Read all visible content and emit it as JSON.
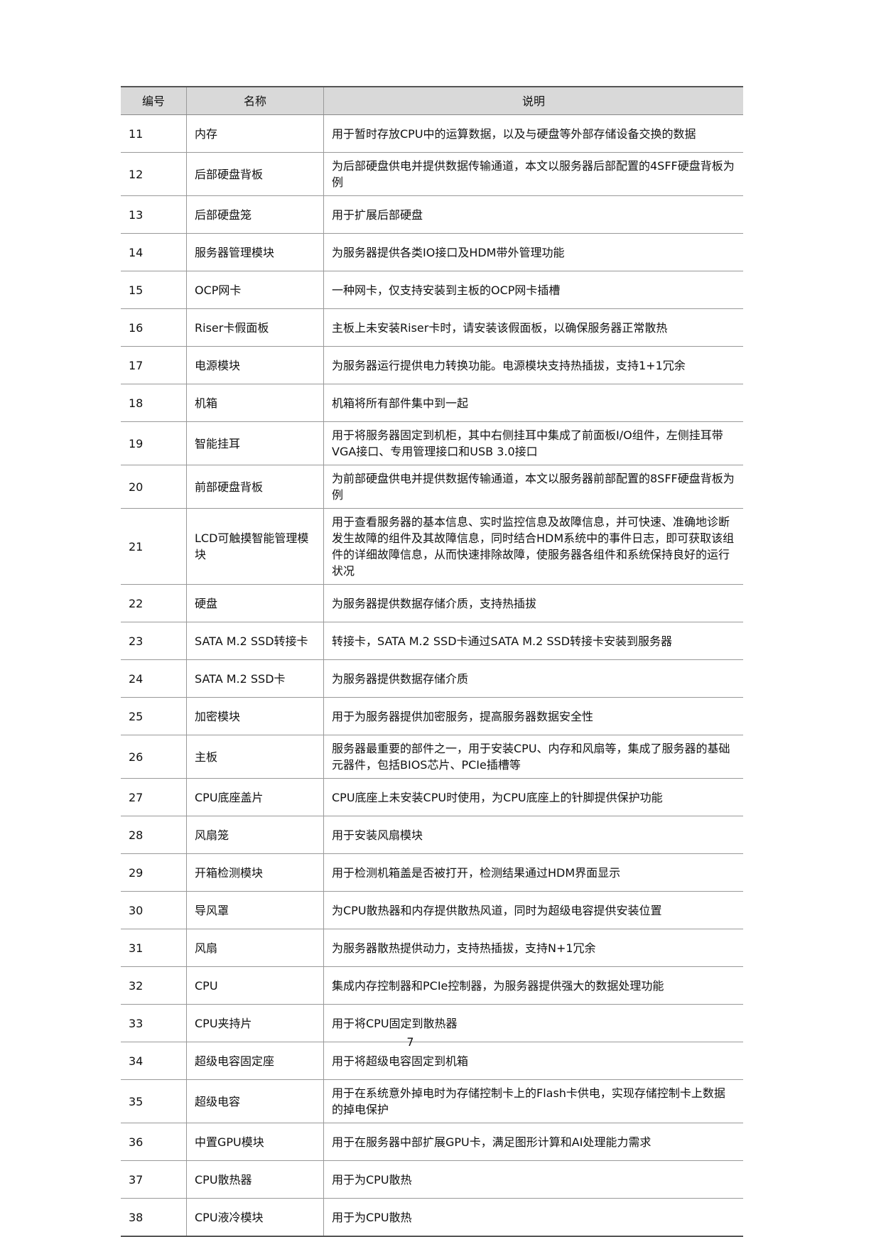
{
  "table": {
    "headers": [
      "编号",
      "名称",
      "说明"
    ],
    "rows": [
      {
        "no": "11",
        "name": "内存",
        "desc": "用于暂时存放CPU中的运算数据，以及与硬盘等外部存储设备交换的数据"
      },
      {
        "no": "12",
        "name": "后部硬盘背板",
        "desc": "为后部硬盘供电并提供数据传输通道，本文以服务器后部配置的4SFF硬盘背板为例"
      },
      {
        "no": "13",
        "name": "后部硬盘笼",
        "desc": "用于扩展后部硬盘"
      },
      {
        "no": "14",
        "name": "服务器管理模块",
        "desc": "为服务器提供各类IO接口及HDM带外管理功能"
      },
      {
        "no": "15",
        "name": "OCP网卡",
        "desc": "一种网卡，仅支持安装到主板的OCP网卡插槽"
      },
      {
        "no": "16",
        "name": "Riser卡假面板",
        "desc": "主板上未安装Riser卡时，请安装该假面板，以确保服务器正常散热"
      },
      {
        "no": "17",
        "name": "电源模块",
        "desc": "为服务器运行提供电力转换功能。电源模块支持热插拔，支持1+1冗余"
      },
      {
        "no": "18",
        "name": "机箱",
        "desc": "机箱将所有部件集中到一起"
      },
      {
        "no": "19",
        "name": "智能挂耳",
        "desc": "用于将服务器固定到机柜，其中右侧挂耳中集成了前面板I/O组件，左侧挂耳带VGA接口、专用管理接口和USB 3.0接口"
      },
      {
        "no": "20",
        "name": "前部硬盘背板",
        "desc": "为前部硬盘供电并提供数据传输通道，本文以服务器前部配置的8SFF硬盘背板为例"
      },
      {
        "no": "21",
        "name": "LCD可触摸智能管理模块",
        "desc": "用于查看服务器的基本信息、实时监控信息及故障信息，并可快速、准确地诊断发生故障的组件及其故障信息，同时结合HDM系统中的事件日志，即可获取该组件的详细故障信息，从而快速排除故障，使服务器各组件和系统保持良好的运行状况"
      },
      {
        "no": "22",
        "name": "硬盘",
        "desc": "为服务器提供数据存储介质，支持热插拔"
      },
      {
        "no": "23",
        "name": "SATA M.2 SSD转接卡",
        "desc": "转接卡，SATA M.2 SSD卡通过SATA M.2 SSD转接卡安装到服务器"
      },
      {
        "no": "24",
        "name": "SATA M.2 SSD卡",
        "desc": "为服务器提供数据存储介质"
      },
      {
        "no": "25",
        "name": "加密模块",
        "desc": "用于为服务器提供加密服务，提高服务器数据安全性"
      },
      {
        "no": "26",
        "name": "主板",
        "desc": "服务器最重要的部件之一，用于安装CPU、内存和风扇等，集成了服务器的基础元器件，包括BIOS芯片、PCIe插槽等"
      },
      {
        "no": "27",
        "name": "CPU底座盖片",
        "desc": "CPU底座上未安装CPU时使用，为CPU底座上的针脚提供保护功能"
      },
      {
        "no": "28",
        "name": "风扇笼",
        "desc": "用于安装风扇模块"
      },
      {
        "no": "29",
        "name": "开箱检测模块",
        "desc": "用于检测机箱盖是否被打开，检测结果通过HDM界面显示"
      },
      {
        "no": "30",
        "name": "导风罩",
        "desc": "为CPU散热器和内存提供散热风道，同时为超级电容提供安装位置"
      },
      {
        "no": "31",
        "name": "风扇",
        "desc": "为服务器散热提供动力，支持热插拔，支持N+1冗余"
      },
      {
        "no": "32",
        "name": "CPU",
        "desc": "集成内存控制器和PCIe控制器，为服务器提供强大的数据处理功能"
      },
      {
        "no": "33",
        "name": "CPU夹持片",
        "desc": "用于将CPU固定到散热器"
      },
      {
        "no": "34",
        "name": "超级电容固定座",
        "desc": "用于将超级电容固定到机箱"
      },
      {
        "no": "35",
        "name": "超级电容",
        "desc": "用于在系统意外掉电时为存储控制卡上的Flash卡供电，实现存储控制卡上数据的掉电保护"
      },
      {
        "no": "36",
        "name": "中置GPU模块",
        "desc": "用于在服务器中部扩展GPU卡，满足图形计算和AI处理能力需求"
      },
      {
        "no": "37",
        "name": "CPU散热器",
        "desc": "用于为CPU散热"
      },
      {
        "no": "38",
        "name": "CPU液冷模块",
        "desc": "用于为CPU散热"
      }
    ]
  },
  "page_number": "7"
}
